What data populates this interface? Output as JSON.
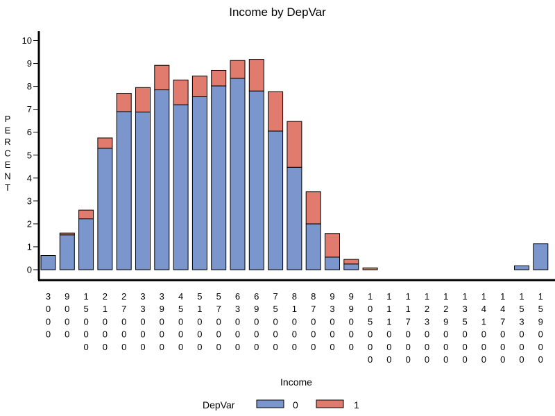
{
  "chart_data": {
    "type": "bar",
    "stacked": true,
    "title": "Income by DepVar",
    "xlabel": "Income",
    "ylabel": "PERCENT",
    "ylim": [
      0,
      10
    ],
    "yticks": [
      "0",
      "1",
      "2",
      "3",
      "4",
      "5",
      "6",
      "7",
      "8",
      "9",
      "10"
    ],
    "categories": [
      "3000",
      "9000",
      "15000",
      "21000",
      "27000",
      "33000",
      "39000",
      "45000",
      "51000",
      "57000",
      "63000",
      "69000",
      "75000",
      "81000",
      "87000",
      "93000",
      "99000",
      "105000",
      "111000",
      "117000",
      "123000",
      "129000",
      "135000",
      "141000",
      "147000",
      "153000",
      "159000"
    ],
    "series": [
      {
        "name": "0",
        "color": "#7b96cd",
        "values": [
          0.62,
          1.52,
          2.22,
          5.3,
          6.9,
          6.88,
          7.85,
          7.2,
          7.55,
          8.02,
          8.35,
          7.8,
          6.05,
          4.47,
          2.0,
          0.55,
          0.25,
          0.0,
          0,
          0,
          0,
          0,
          0,
          0,
          0,
          0.17,
          1.13
        ]
      },
      {
        "name": "1",
        "color": "#e07b6e",
        "values": [
          0.0,
          0.08,
          0.38,
          0.45,
          0.8,
          1.07,
          1.07,
          1.08,
          0.9,
          0.68,
          0.78,
          1.38,
          1.72,
          2.0,
          1.4,
          1.03,
          0.2,
          0.08,
          0,
          0,
          0,
          0,
          0,
          0,
          0,
          0.0,
          0.0
        ]
      }
    ],
    "legend": {
      "title": "DepVar",
      "placement": "bottom"
    },
    "grid": false
  }
}
